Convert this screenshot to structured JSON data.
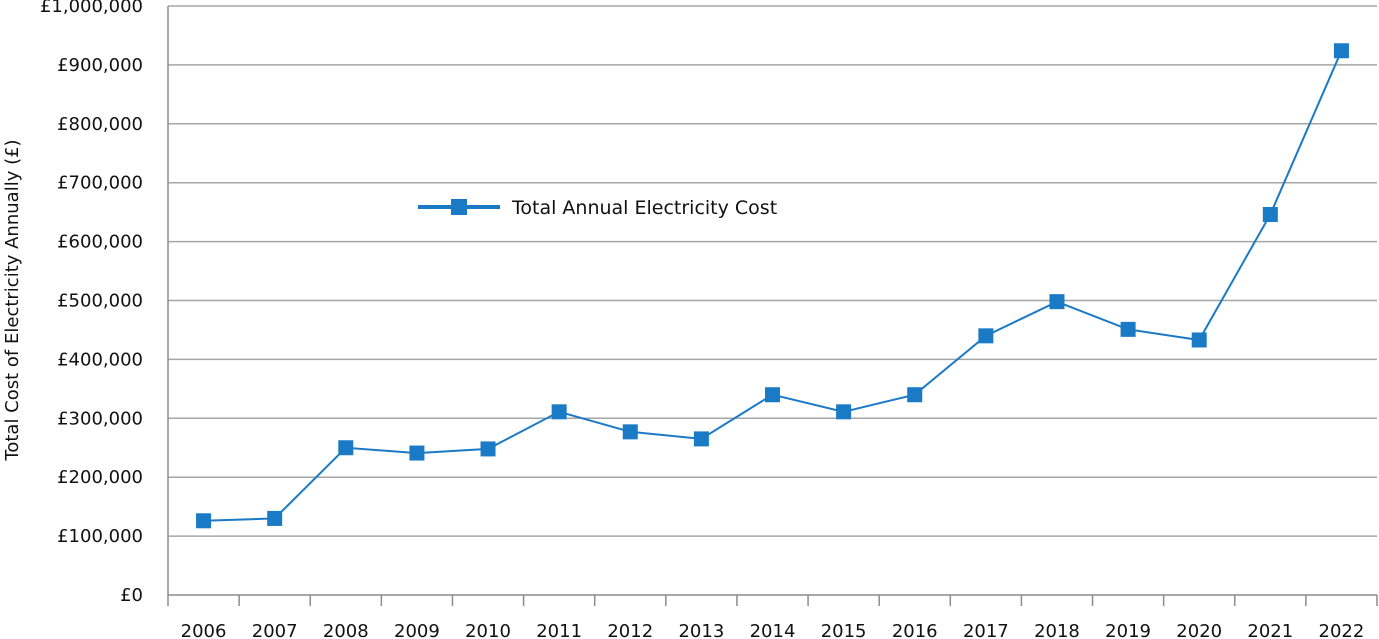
{
  "chart_data": {
    "type": "line",
    "title": "",
    "xlabel": "",
    "ylabel": "Total Cost of Electricity Annually (£)",
    "categories": [
      "2006",
      "2007",
      "2008",
      "2009",
      "2010",
      "2011",
      "2012",
      "2013",
      "2014",
      "2015",
      "2016",
      "2017",
      "2018",
      "2019",
      "2020",
      "2021",
      "2022"
    ],
    "series": [
      {
        "name": "Total Annual Electricity Cost",
        "values": [
          126000,
          130000,
          250000,
          241000,
          248000,
          311000,
          277000,
          265000,
          340000,
          311000,
          340000,
          440000,
          498000,
          451000,
          433000,
          646000,
          924000
        ],
        "color": "#1a7ac6",
        "marker": "square"
      }
    ],
    "ylim": [
      0,
      1000000
    ],
    "yticks": [
      0,
      100000,
      200000,
      300000,
      400000,
      500000,
      600000,
      700000,
      800000,
      900000,
      1000000
    ],
    "ytick_labels": [
      "£0",
      "£100,000",
      "£200,000",
      "£300,000",
      "£400,000",
      "£500,000",
      "£600,000",
      "£700,000",
      "£800,000",
      "£900,000",
      "£1,000,000"
    ],
    "grid": "horizontal",
    "legend_position": "inside-top-left",
    "colors": {
      "gridline": "#a6a6a6",
      "axis": "#8c8c8c",
      "series": "#1a7ac6",
      "marker": "#1a7ac6"
    }
  }
}
